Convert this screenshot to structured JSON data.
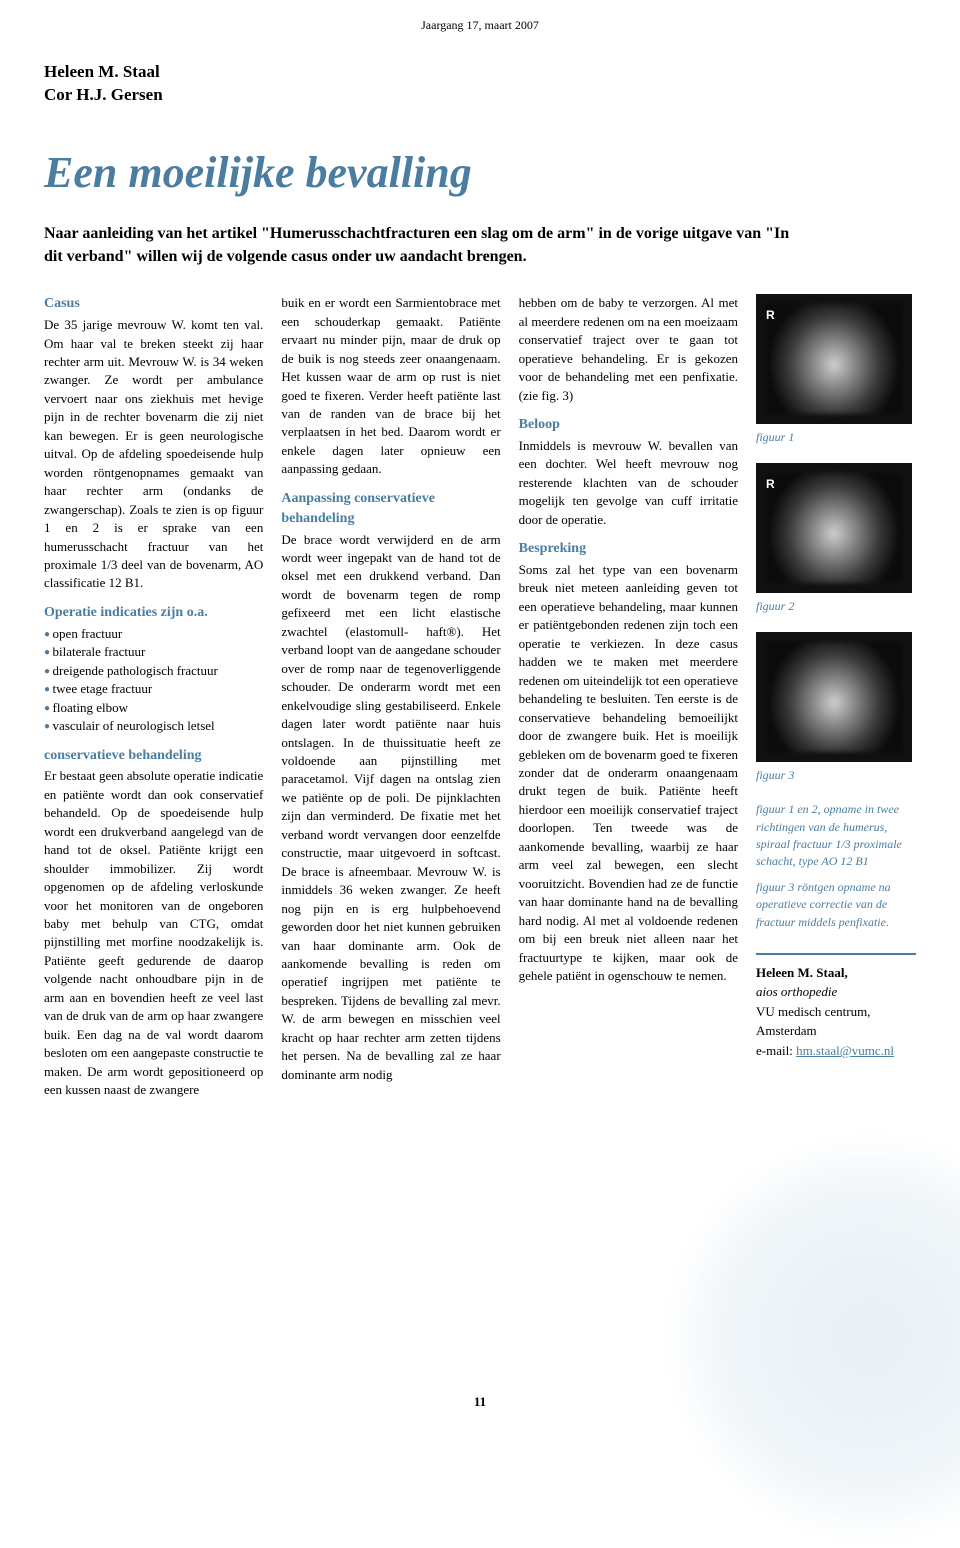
{
  "colors": {
    "accent": "#4a7d9f",
    "text": "#000000",
    "background": "#ffffff",
    "xray_bg": "#111111",
    "xray_label": "#ffffff"
  },
  "header": {
    "issue": "Jaargang 17, maart 2007"
  },
  "byline": {
    "line1": "Heleen M. Staal",
    "line2": "Cor H.J. Gersen"
  },
  "title": "Een moeilijke bevalling",
  "lede": "Naar aanleiding van het artikel \"Humerusschachtfracturen een slag om de arm\" in de vorige uitgave van \"In dit verband\" willen wij de volgende casus onder uw aandacht brengen.",
  "col1": {
    "h1": "Casus",
    "p1": "De 35 jarige mevrouw W. komt ten val. Om haar val te breken steekt zij haar rechter arm uit. Mevrouw W. is 34 weken zwanger. Ze wordt per ambulance vervoert naar ons ziekhuis met hevige pijn in de rechter bovenarm die zij niet kan bewegen. Er is geen neurologische uitval. Op de afdeling spoedeisende hulp worden röntgenopnames gemaakt van haar rechter arm (ondanks de zwangerschap). Zoals te zien is op figuur 1 en 2 is er sprake van een humerusschacht fractuur van het proximale 1/3 deel van de bovenarm, AO classificatie 12 B1.",
    "h2": "Operatie indicaties zijn o.a.",
    "bullets": [
      "open fractuur",
      "bilaterale fractuur",
      "dreigende pathologisch fractuur",
      "twee etage fractuur",
      "floating elbow",
      "vasculair of neurologisch letsel"
    ],
    "h3": "conservatieve behandeling",
    "p2": "Er bestaat geen absolute operatie indicatie en patiënte wordt dan ook conservatief behandeld. Op de spoedeisende hulp wordt een drukverband aangelegd van de hand tot de oksel. Patiënte krijgt een shoulder immobilizer. Zij wordt opgenomen op de afdeling verloskunde voor het monitoren van de ongeboren baby met behulp van CTG, omdat pijnstilling met morfine noodzakelijk is. Patiënte geeft gedurende de daarop volgende nacht onhoudbare pijn in de arm aan en bovendien heeft ze veel last van de druk van de arm op haar zwangere buik. Een dag na de val wordt daarom besloten om een aangepaste constructie te maken. De arm wordt gepositioneerd op een kussen naast de zwangere"
  },
  "col2": {
    "p1": "buik en er wordt een Sarmientobrace met een schouderkap gemaakt. Patiënte ervaart nu minder pijn, maar de druk op de buik is nog steeds zeer onaangenaam. Het kussen waar de arm op rust is niet goed te fixeren. Verder heeft patiënte last van de randen van de brace bij het verplaatsen in het bed. Daarom wordt er enkele dagen later opnieuw een aanpassing gedaan.",
    "h1": "Aanpassing conservatieve behandeling",
    "p2": "De brace wordt verwijderd en de arm wordt weer ingepakt van de hand tot de oksel met een drukkend verband. Dan wordt de bovenarm tegen de romp gefixeerd met een licht elastische zwachtel (elastomull- haft®). Het verband loopt van de aangedane schouder over de romp naar de tegenoverliggende schouder. De onderarm wordt met een enkelvoudige sling gestabiliseerd. Enkele dagen later wordt patiënte naar huis ontslagen. In de thuissituatie heeft ze voldoende aan pijnstilling met paracetamol. Vijf dagen na ontslag zien we patiënte op de poli. De pijnklachten zijn dan verminderd. De fixatie met het verband wordt vervangen door eenzelfde constructie, maar uitgevoerd in softcast. De brace is afneembaar. Mevrouw W. is inmiddels 36 weken zwanger. Ze heeft nog pijn en is erg hulpbehoevend geworden door het niet kunnen gebruiken van haar dominante arm. Ook de aankomende bevalling is reden om operatief ingrijpen met patiënte te bespreken. Tijdens de bevalling zal mevr. W. de arm bewegen en misschien veel kracht op haar rechter arm zetten tijdens het persen. Na de bevalling zal ze haar dominante arm nodig"
  },
  "col3": {
    "p1": "hebben om de baby te verzorgen. Al met al meerdere redenen om na een moeizaam conservatief traject over te gaan tot operatieve behandeling. Er is gekozen voor de behandeling met een penfixatie. (zie fig. 3)",
    "h1": "Beloop",
    "p2": "Inmiddels is mevrouw W. bevallen van een dochter. Wel heeft mevrouw nog resterende klachten van de schouder mogelijk ten gevolge van cuff irritatie door de operatie.",
    "h2": "Bespreking",
    "p3": "Soms zal het type van een bovenarm breuk niet meteen aanleiding geven tot een operatieve behandeling, maar kunnen er patiëntgebonden redenen zijn toch een operatie te verkiezen. In deze casus hadden we te maken met meerdere redenen om uiteindelijk tot een operatieve behandeling te besluiten. Ten eerste is de conservatieve behandeling bemoeilijkt door de zwangere buik. Het is moeilijk gebleken om de bovenarm goed te fixeren zonder dat de onderarm onaangenaam drukt tegen de buik. Patiënte heeft hierdoor een moeilijk conservatief traject doorlopen. Ten tweede was de aankomende bevalling, waarbij ze haar arm veel zal bewegen, een slecht vooruitzicht. Bovendien had ze de functie van haar dominante hand na de bevalling hard nodig. Al met al voldoende redenen om bij een breuk niet alleen naar het fractuurtype te kijken, maar ook de gehele patiënt in ogenschouw te nemen."
  },
  "figures": {
    "fig1_label": "figuur 1",
    "fig2_label": "figuur 2",
    "fig3_label": "figuur 3",
    "r_marker": "R",
    "caption1": "figuur 1 en 2, opname in twee richtingen van de humerus, spiraal fractuur 1/3 proximale schacht, type AO 12 B1",
    "caption2": "figuur 3 röntgen opname na operatieve correctie van de fractuur middels penfixatie."
  },
  "authorbox": {
    "name": "Heleen M. Staal,",
    "role": "aios orthopedie",
    "inst": "VU medisch centrum,",
    "city": "Amsterdam",
    "email_label": "e-mail: ",
    "email": "hm.staal@vumc.nl",
    "email_href": "mailto:hm.staal@vumc.nl"
  },
  "pagenum": "11"
}
